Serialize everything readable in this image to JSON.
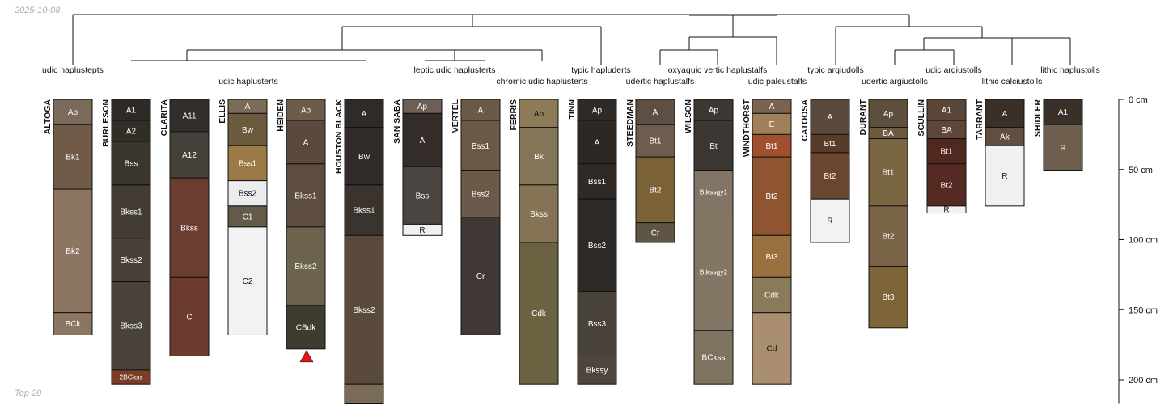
{
  "date": "2025-10-08",
  "footer": "Top 20",
  "depth_axis": {
    "unit": "cm",
    "max_depth": 217,
    "ticks": [
      {
        "depth": 0,
        "label": "0 cm"
      },
      {
        "depth": 50,
        "label": "50 cm"
      },
      {
        "depth": 100,
        "label": "100 cm"
      },
      {
        "depth": 150,
        "label": "150 cm"
      },
      {
        "depth": 200,
        "label": "200 cm"
      }
    ]
  },
  "taxa": [
    {
      "label": "udic haplustepts",
      "row": 0
    },
    {
      "label": "udic haplusterts",
      "row": 1
    },
    {
      "label": "leptic udic haplusterts",
      "row": 0
    },
    {
      "label": "chromic udic haplusterts",
      "row": 1
    },
    {
      "label": "typic hapluderts",
      "row": 0
    },
    {
      "label": "udertic haplustalfs",
      "row": 1
    },
    {
      "label": "oxyaquic vertic haplustalfs",
      "row": 0
    },
    {
      "label": "udic paleustalfs",
      "row": 1
    },
    {
      "label": "typic argiudolls",
      "row": 0
    },
    {
      "label": "udertic argiustolls",
      "row": 1
    },
    {
      "label": "udic argiustolls",
      "row": 0
    },
    {
      "label": "lithic calciustolls",
      "row": 1
    },
    {
      "label": "lithic haplustolls",
      "row": 0
    }
  ],
  "profiles": [
    {
      "name": "ALTOGA",
      "marker": false,
      "horizons": [
        {
          "name": "Ap",
          "top": 0,
          "bottom": 18,
          "color": "#7a6a5a",
          "text": "light"
        },
        {
          "name": "Bk1",
          "top": 18,
          "bottom": 64,
          "color": "#705b48",
          "text": "light"
        },
        {
          "name": "Bk2",
          "top": 64,
          "bottom": 152,
          "color": "#8c7561",
          "text": "light"
        },
        {
          "name": "BCk",
          "top": 152,
          "bottom": 168,
          "color": "#8b7663",
          "text": "light"
        }
      ]
    },
    {
      "name": "BURLESON",
      "marker": false,
      "horizons": [
        {
          "name": "A1",
          "top": 0,
          "bottom": 15,
          "color": "#302a26",
          "text": "light"
        },
        {
          "name": "A2",
          "top": 15,
          "bottom": 30,
          "color": "#332d28",
          "text": "light"
        },
        {
          "name": "Bss",
          "top": 30,
          "bottom": 61,
          "color": "#3b3530",
          "text": "light"
        },
        {
          "name": "Bkss1",
          "top": 61,
          "bottom": 99,
          "color": "#433c36",
          "text": "light"
        },
        {
          "name": "Bkss2",
          "top": 99,
          "bottom": 130,
          "color": "#48413a",
          "text": "light"
        },
        {
          "name": "Bkss3",
          "top": 130,
          "bottom": 193,
          "color": "#4a433c",
          "text": "light"
        },
        {
          "name": "2BCkss",
          "top": 193,
          "bottom": 203,
          "color": "#7a3d26",
          "text": "light"
        }
      ]
    },
    {
      "name": "CLARITA",
      "marker": false,
      "horizons": [
        {
          "name": "A11",
          "top": 0,
          "bottom": 23,
          "color": "#342e2a",
          "text": "light"
        },
        {
          "name": "A12",
          "top": 23,
          "bottom": 56,
          "color": "#46403a",
          "text": "light"
        },
        {
          "name": "Bkss",
          "top": 56,
          "bottom": 127,
          "color": "#6a3d30",
          "text": "light"
        },
        {
          "name": "C",
          "top": 127,
          "bottom": 183,
          "color": "#6b3b2e",
          "text": "light"
        }
      ]
    },
    {
      "name": "ELLIS",
      "marker": false,
      "horizons": [
        {
          "name": "A",
          "top": 0,
          "bottom": 10,
          "color": "#7a6c58",
          "text": "light"
        },
        {
          "name": "Bw",
          "top": 10,
          "bottom": 33,
          "color": "#6b5a3d",
          "text": "light"
        },
        {
          "name": "Bss1",
          "top": 33,
          "bottom": 58,
          "color": "#9a7a45",
          "text": "light"
        },
        {
          "name": "Bss2",
          "top": 58,
          "bottom": 76,
          "color": "#ececec",
          "text": "dark"
        },
        {
          "name": "C1",
          "top": 76,
          "bottom": 91,
          "color": "#645a49",
          "text": "light"
        },
        {
          "name": "C2",
          "top": 91,
          "bottom": 168,
          "color": "#f2f2f2",
          "text": "dark"
        }
      ]
    },
    {
      "name": "HEIDEN",
      "marker": true,
      "horizons": [
        {
          "name": "Ap",
          "top": 0,
          "bottom": 15,
          "color": "#6d5c4a",
          "text": "light"
        },
        {
          "name": "A",
          "top": 15,
          "bottom": 46,
          "color": "#5a4a3d",
          "text": "light"
        },
        {
          "name": "Bkss1",
          "top": 46,
          "bottom": 91,
          "color": "#5c4d3f",
          "text": "light"
        },
        {
          "name": "Bkss2",
          "top": 91,
          "bottom": 147,
          "color": "#6b634d",
          "text": "light"
        },
        {
          "name": "CBdk",
          "top": 147,
          "bottom": 178,
          "color": "#3e3b2f",
          "text": "light"
        }
      ]
    },
    {
      "name": "HOUSTON BLACK",
      "marker": false,
      "horizons": [
        {
          "name": "A",
          "top": 0,
          "bottom": 20,
          "color": "#2f2b28",
          "text": "light"
        },
        {
          "name": "Bw",
          "top": 20,
          "bottom": 61,
          "color": "#312c29",
          "text": "light"
        },
        {
          "name": "Bkss1",
          "top": 61,
          "bottom": 97,
          "color": "#3a332e",
          "text": "light"
        },
        {
          "name": "Bkss2",
          "top": 97,
          "bottom": 203,
          "color": "#594a3b",
          "text": "light"
        },
        {
          "name": "",
          "top": 203,
          "bottom": 217,
          "color": "#7a6a58",
          "text": "light"
        }
      ]
    },
    {
      "name": "SAN SABA",
      "marker": false,
      "horizons": [
        {
          "name": "Ap",
          "top": 0,
          "bottom": 10,
          "color": "#6d5f55",
          "text": "light"
        },
        {
          "name": "A",
          "top": 10,
          "bottom": 48,
          "color": "#342d2a",
          "text": "light"
        },
        {
          "name": "Bss",
          "top": 48,
          "bottom": 89,
          "color": "#4a4540",
          "text": "light"
        },
        {
          "name": "R",
          "top": 89,
          "bottom": 97,
          "color": "#f0f0f0",
          "text": "dark"
        }
      ]
    },
    {
      "name": "VERTEL",
      "marker": false,
      "horizons": [
        {
          "name": "A",
          "top": 0,
          "bottom": 15,
          "color": "#6b5a48",
          "text": "light"
        },
        {
          "name": "Bss1",
          "top": 15,
          "bottom": 51,
          "color": "#6b5948",
          "text": "light"
        },
        {
          "name": "Bss2",
          "top": 51,
          "bottom": 84,
          "color": "#6a5a4a",
          "text": "light"
        },
        {
          "name": "Cr",
          "top": 84,
          "bottom": 168,
          "color": "#403834",
          "text": "light"
        }
      ]
    },
    {
      "name": "FERRIS",
      "marker": false,
      "horizons": [
        {
          "name": "Ap",
          "top": 0,
          "bottom": 20,
          "color": "#8c7b56",
          "text": "dark"
        },
        {
          "name": "Bk",
          "top": 20,
          "bottom": 61,
          "color": "#837557",
          "text": "light"
        },
        {
          "name": "Bkss",
          "top": 61,
          "bottom": 102,
          "color": "#847455",
          "text": "light"
        },
        {
          "name": "Cdk",
          "top": 102,
          "bottom": 203,
          "color": "#6b6242",
          "text": "light"
        }
      ]
    },
    {
      "name": "TINN",
      "marker": false,
      "horizons": [
        {
          "name": "Ap",
          "top": 0,
          "bottom": 15,
          "color": "#302a26",
          "text": "light"
        },
        {
          "name": "A",
          "top": 15,
          "bottom": 46,
          "color": "#2e2825",
          "text": "light"
        },
        {
          "name": "Bss1",
          "top": 46,
          "bottom": 71,
          "color": "#302a27",
          "text": "light"
        },
        {
          "name": "Bss2",
          "top": 71,
          "bottom": 137,
          "color": "#2d2926",
          "text": "light"
        },
        {
          "name": "Bss3",
          "top": 137,
          "bottom": 183,
          "color": "#4a433c",
          "text": "light"
        },
        {
          "name": "Bkssy",
          "top": 183,
          "bottom": 203,
          "color": "#4e463d",
          "text": "light"
        }
      ]
    },
    {
      "name": "STEEDMAN",
      "marker": false,
      "horizons": [
        {
          "name": "A",
          "top": 0,
          "bottom": 18,
          "color": "#5e4f45",
          "text": "light"
        },
        {
          "name": "Bt1",
          "top": 18,
          "bottom": 41,
          "color": "#6e5d4d",
          "text": "light"
        },
        {
          "name": "Bt2",
          "top": 41,
          "bottom": 88,
          "color": "#7a6236",
          "text": "light"
        },
        {
          "name": "Cr",
          "top": 88,
          "bottom": 102,
          "color": "#5f5545",
          "text": "light"
        }
      ]
    },
    {
      "name": "WILSON",
      "marker": false,
      "horizons": [
        {
          "name": "Ap",
          "top": 0,
          "bottom": 15,
          "color": "#3e3833",
          "text": "light"
        },
        {
          "name": "Bt",
          "top": 15,
          "bottom": 51,
          "color": "#3c3732",
          "text": "light"
        },
        {
          "name": "Btkssgy1",
          "top": 51,
          "bottom": 81,
          "color": "#837566",
          "text": "light"
        },
        {
          "name": "Btkssgy2",
          "top": 81,
          "bottom": 165,
          "color": "#837664",
          "text": "light"
        },
        {
          "name": "BCkss",
          "top": 165,
          "bottom": 203,
          "color": "#7e7261",
          "text": "light"
        }
      ]
    },
    {
      "name": "WINDTHORST",
      "marker": false,
      "horizons": [
        {
          "name": "A",
          "top": 0,
          "bottom": 10,
          "color": "#7a6450",
          "text": "light"
        },
        {
          "name": "E",
          "top": 10,
          "bottom": 25,
          "color": "#a08058",
          "text": "light"
        },
        {
          "name": "Bt1",
          "top": 25,
          "bottom": 41,
          "color": "#a0502e",
          "text": "light"
        },
        {
          "name": "Bt2",
          "top": 41,
          "bottom": 97,
          "color": "#8f5430",
          "text": "light"
        },
        {
          "name": "Bt3",
          "top": 97,
          "bottom": 127,
          "color": "#9a7040",
          "text": "light"
        },
        {
          "name": "Cdk",
          "top": 127,
          "bottom": 152,
          "color": "#8a7a5a",
          "text": "light"
        },
        {
          "name": "Cd",
          "top": 152,
          "bottom": 203,
          "color": "#a98f6f",
          "text": "dark"
        }
      ]
    },
    {
      "name": "CATOOSA",
      "marker": false,
      "horizons": [
        {
          "name": "A",
          "top": 0,
          "bottom": 25,
          "color": "#5a4a3d",
          "text": "light"
        },
        {
          "name": "Bt1",
          "top": 25,
          "bottom": 38,
          "color": "#5a3a28",
          "text": "light"
        },
        {
          "name": "Bt2",
          "top": 38,
          "bottom": 71,
          "color": "#6a4530",
          "text": "light"
        },
        {
          "name": "R",
          "top": 71,
          "bottom": 102,
          "color": "#f2f2f2",
          "text": "dark"
        }
      ]
    },
    {
      "name": "DURANT",
      "marker": false,
      "horizons": [
        {
          "name": "Ap",
          "top": 0,
          "bottom": 20,
          "color": "#5e4f3d",
          "text": "light"
        },
        {
          "name": "BA",
          "top": 20,
          "bottom": 28,
          "color": "#6b5a40",
          "text": "light"
        },
        {
          "name": "Bt1",
          "top": 28,
          "bottom": 76,
          "color": "#7a6640",
          "text": "light"
        },
        {
          "name": "Bt2",
          "top": 76,
          "bottom": 119,
          "color": "#7a6548",
          "text": "light"
        },
        {
          "name": "Bt3",
          "top": 119,
          "bottom": 163,
          "color": "#7e6538",
          "text": "light"
        }
      ]
    },
    {
      "name": "SCULLIN",
      "marker": false,
      "horizons": [
        {
          "name": "A1",
          "top": 0,
          "bottom": 15,
          "color": "#5a4636",
          "text": "light"
        },
        {
          "name": "BA",
          "top": 15,
          "bottom": 28,
          "color": "#5e4638",
          "text": "light"
        },
        {
          "name": "Bt1",
          "top": 28,
          "bottom": 46,
          "color": "#512820",
          "text": "light"
        },
        {
          "name": "Bt2",
          "top": 46,
          "bottom": 76,
          "color": "#552a22",
          "text": "light"
        },
        {
          "name": "R",
          "top": 76,
          "bottom": 81,
          "color": "#f2f2f2",
          "text": "dark"
        }
      ]
    },
    {
      "name": "TARRANT",
      "marker": false,
      "horizons": [
        {
          "name": "A",
          "top": 0,
          "bottom": 20,
          "color": "#3a302a",
          "text": "light"
        },
        {
          "name": "Ak",
          "top": 20,
          "bottom": 33,
          "color": "#5e4f40",
          "text": "light"
        },
        {
          "name": "R",
          "top": 33,
          "bottom": 76,
          "color": "#f0f0f0",
          "text": "dark"
        }
      ]
    },
    {
      "name": "SHIDLER",
      "marker": false,
      "horizons": [
        {
          "name": "A1",
          "top": 0,
          "bottom": 18,
          "color": "#3a302a",
          "text": "light"
        },
        {
          "name": "R",
          "top": 18,
          "bottom": 51,
          "color": "#6e5e4e",
          "text": "light"
        }
      ]
    }
  ]
}
